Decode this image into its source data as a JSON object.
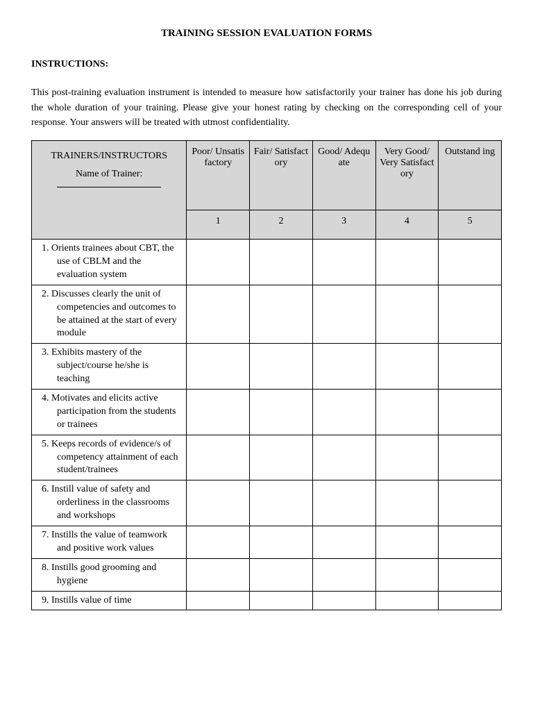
{
  "title": "TRAINING SESSION EVALUATION FORMS",
  "instructions_label": "INSTRUCTIONS",
  "instructions_text": "This post-training evaluation instrument is intended to measure how satisfactorily your trainer has done his job during the whole duration of your training. Please give your honest rating by checking on the corresponding cell of your response. Your answers will be treated with utmost confidentiality.",
  "table": {
    "first_col_header_line1": "TRAINERS/INSTRUCTORS",
    "first_col_header_line2": "Name of Trainer:",
    "columns": [
      {
        "label": "Poor/ Unsatis factory",
        "num": "1"
      },
      {
        "label": "Fair/ Satisfact ory",
        "num": "2"
      },
      {
        "label": "Good/ Adequ ate",
        "num": "3"
      },
      {
        "label": "Very Good/ Very Satisfact ory",
        "num": "4"
      },
      {
        "label": "Outstand ing",
        "num": "5"
      }
    ],
    "rows": [
      {
        "n": "1.",
        "text": "Orients trainees about CBT, the use of CBLM and the evaluation system"
      },
      {
        "n": "2.",
        "text": "Discusses clearly the unit of competencies and outcomes to be attained at the start of every module"
      },
      {
        "n": "3.",
        "text": "Exhibits mastery of the subject/course he/she is teaching"
      },
      {
        "n": "4.",
        "text": "Motivates and elicits active participation from the students or trainees"
      },
      {
        "n": "5.",
        "text": "Keeps records of evidence/s of competency attainment of each student/trainees"
      },
      {
        "n": "6.",
        "text": "Instill value of safety and orderliness in the classrooms and workshops"
      },
      {
        "n": "7.",
        "text": "Instills the value of teamwork and positive work values"
      },
      {
        "n": "8.",
        "text": "Instills good grooming and hygiene"
      },
      {
        "n": "9.",
        "text": "Instills value of time"
      }
    ]
  },
  "colors": {
    "header_bg": "#d6d6d6",
    "border": "#000000",
    "text": "#000000",
    "background": "#ffffff"
  },
  "typography": {
    "font_family": "Georgia, serif",
    "body_fontsize": 14,
    "title_fontsize": 15
  }
}
